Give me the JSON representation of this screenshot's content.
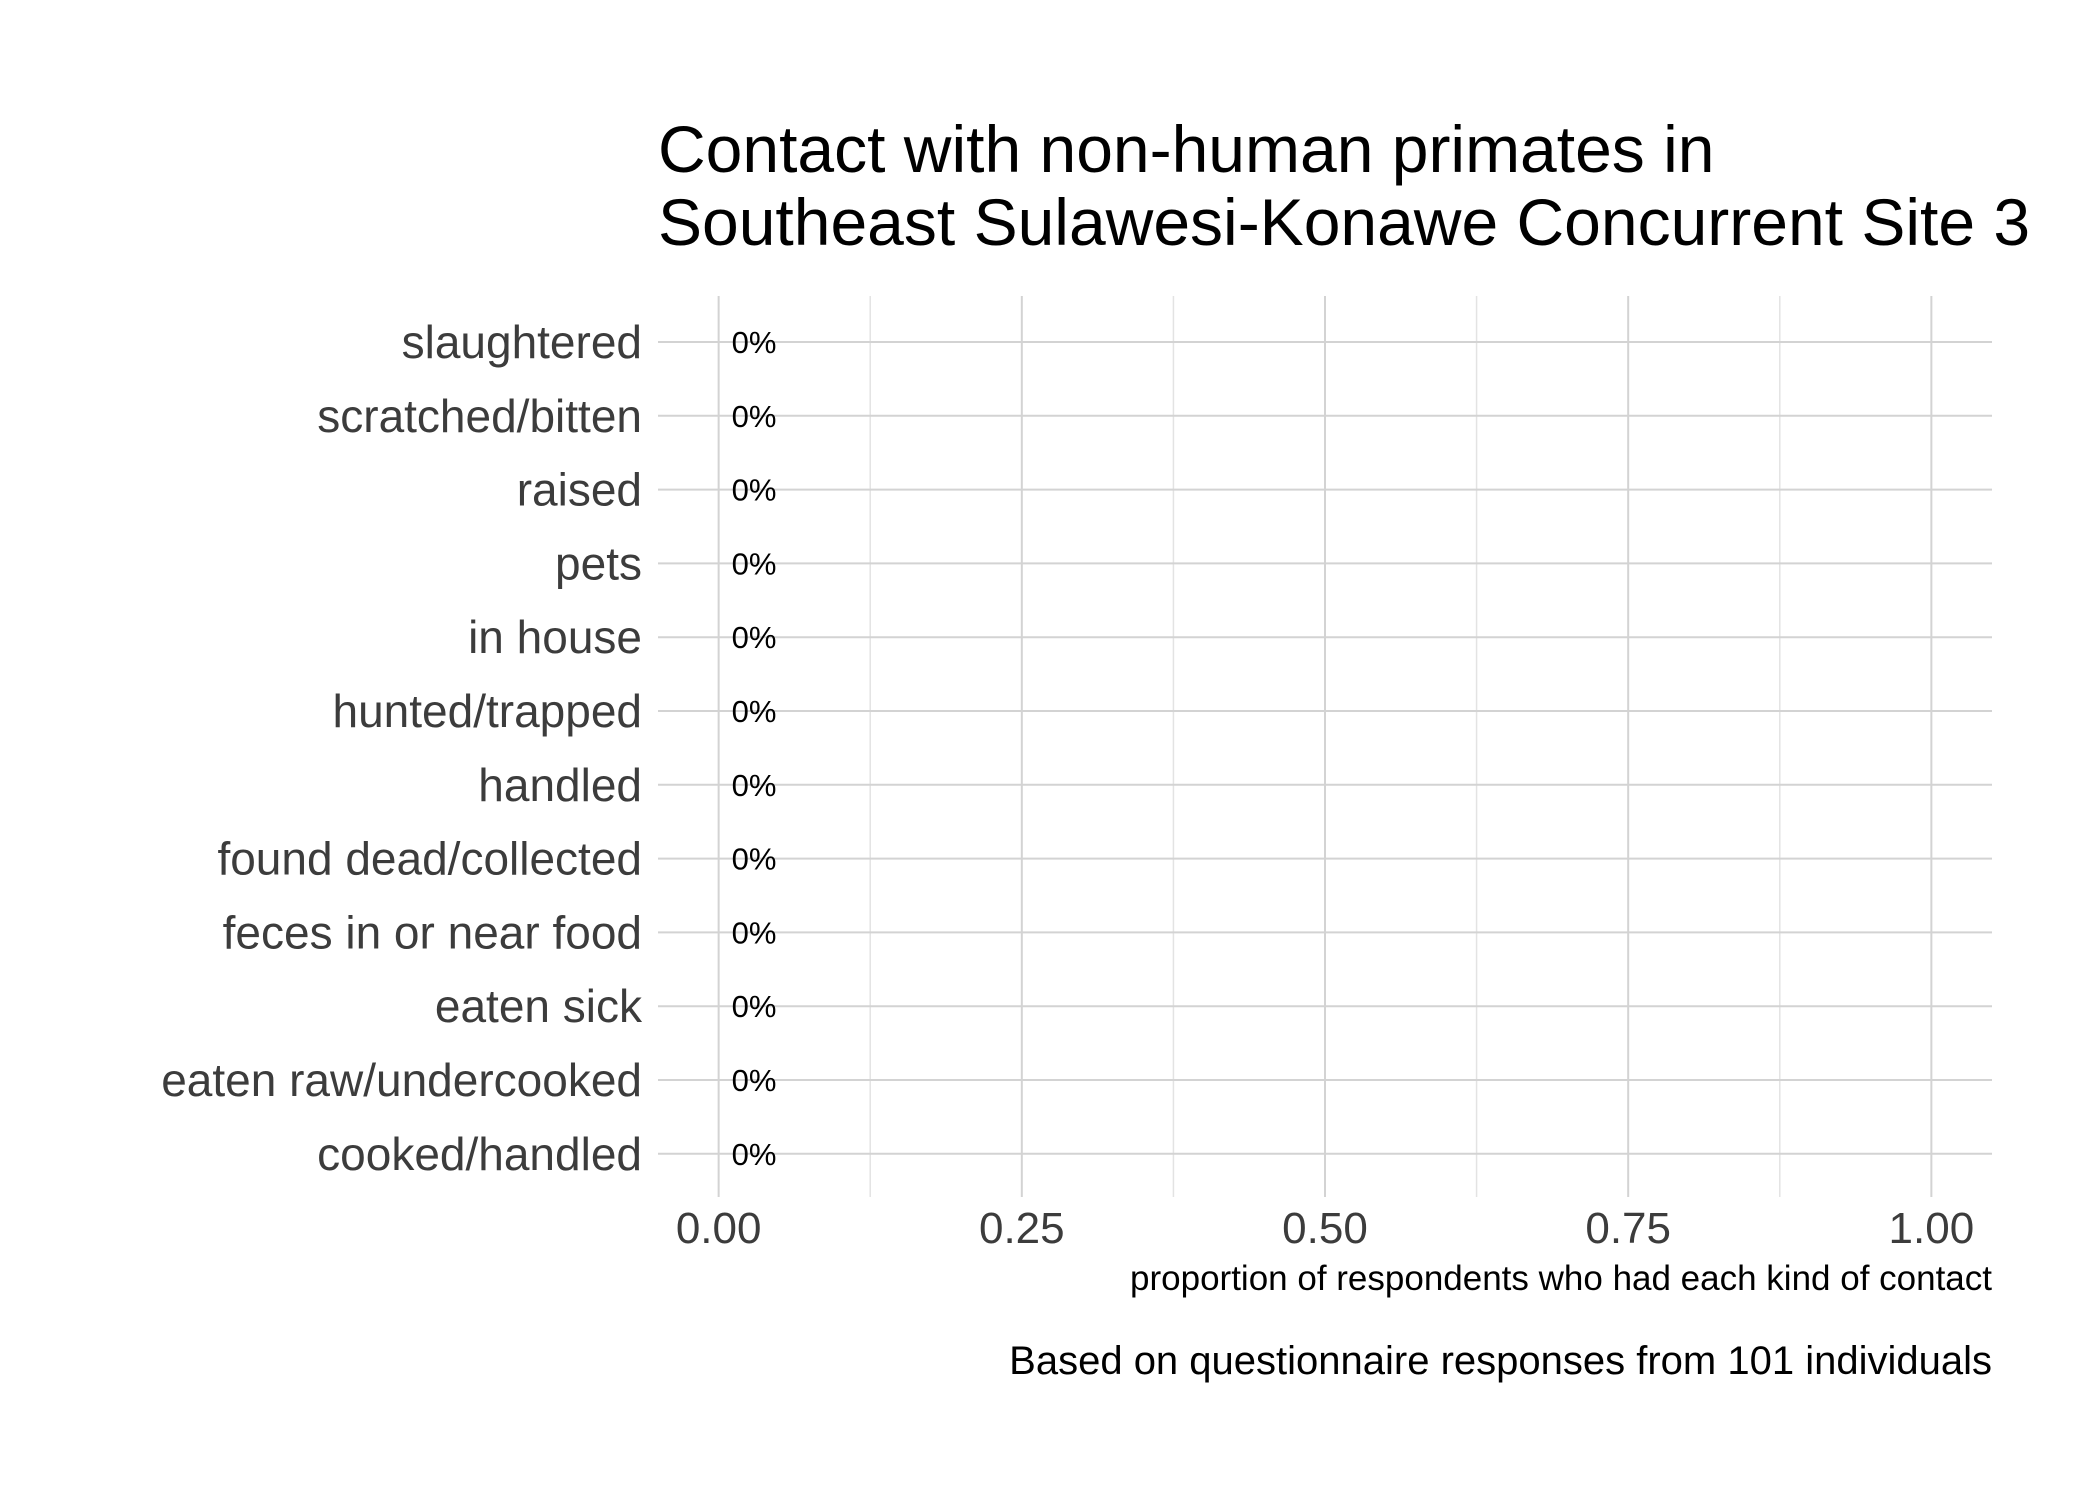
{
  "chart_data": {
    "type": "bar",
    "orientation": "horizontal",
    "title": "Contact with non-human primates in Southeast Sulawesi-Konawe Concurrent Site 3",
    "title_lines": [
      "Contact with non-human primates in",
      "Southeast Sulawesi-Konawe Concurrent Site 3"
    ],
    "xlabel": "proportion of respondents who had each kind of contact",
    "ylabel": "",
    "caption": "Based on questionnaire responses from 101 individuals",
    "categories": [
      "slaughtered",
      "scratched/bitten",
      "raised",
      "pets",
      "in house",
      "hunted/trapped",
      "handled",
      "found dead/collected",
      "feces in or near food",
      "eaten sick",
      "eaten raw/undercooked",
      "cooked/handled"
    ],
    "values": [
      0,
      0,
      0,
      0,
      0,
      0,
      0,
      0,
      0,
      0,
      0,
      0
    ],
    "data_labels": [
      "0%",
      "0%",
      "0%",
      "0%",
      "0%",
      "0%",
      "0%",
      "0%",
      "0%",
      "0%",
      "0%",
      "0%"
    ],
    "xlim": [
      -0.05,
      1.05
    ],
    "x_ticks": [
      0,
      0.25,
      0.5,
      0.75,
      1
    ],
    "x_tick_labels": [
      "0.00",
      "0.25",
      "0.50",
      "0.75",
      "1.00"
    ],
    "x_minor_ticks": [
      0.125,
      0.375,
      0.625,
      0.875
    ],
    "grid": true,
    "legend": "none"
  }
}
